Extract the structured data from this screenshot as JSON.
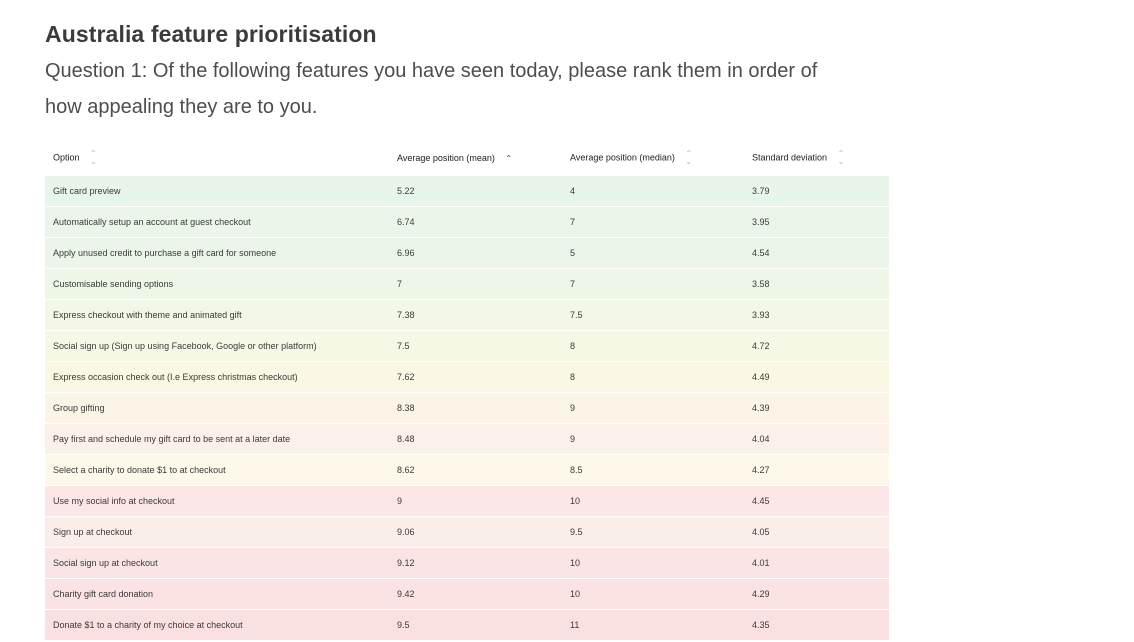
{
  "title": "Australia feature prioritisation",
  "question": "Question 1: Of the following features you have seen today, please rank them in order of how appealing they are to you.",
  "table": {
    "columns": [
      {
        "label": "Option",
        "sort_icon": "sort-both-icon",
        "active": false
      },
      {
        "label": "Average position (mean)",
        "sort_icon": "sort-up-icon",
        "active": true
      },
      {
        "label": "Average position (median)",
        "sort_icon": "sort-both-icon",
        "active": false
      },
      {
        "label": "Standard deviation",
        "sort_icon": "sort-both-icon",
        "active": false
      }
    ],
    "rows": [
      {
        "option": "Gift card preview",
        "mean": "5.22",
        "median": "4",
        "sd": "3.79",
        "color": "#e8f6ea"
      },
      {
        "option": "Automatically setup an account at guest checkout",
        "mean": "6.74",
        "median": "7",
        "sd": "3.95",
        "color": "#eaf6e9"
      },
      {
        "option": "Apply unused credit to purchase a gift card for someone",
        "mean": "6.96",
        "median": "5",
        "sd": "4.54",
        "color": "#ecf6e8"
      },
      {
        "option": "Customisable sending options",
        "mean": "7",
        "median": "7",
        "sd": "3.58",
        "color": "#edf6e7"
      },
      {
        "option": "Express checkout with theme and animated gift",
        "mean": "7.38",
        "median": "7.5",
        "sd": "3.93",
        "color": "#f2f7e7"
      },
      {
        "option": "Social sign up (Sign up using Facebook, Google or other platform)",
        "mean": "7.5",
        "median": "8",
        "sd": "4.72",
        "color": "#f6f8e6"
      },
      {
        "option": "Express occasion check out (I.e Express christmas checkout)",
        "mean": "7.62",
        "median": "8",
        "sd": "4.49",
        "color": "#faf7e4"
      },
      {
        "option": "Group gifting",
        "mean": "8.38",
        "median": "9",
        "sd": "4.39",
        "color": "#fcf4e6"
      },
      {
        "option": "Pay first and schedule my gift card to be sent at a later date",
        "mean": "8.48",
        "median": "9",
        "sd": "4.04",
        "color": "#fbf1e8"
      },
      {
        "option": "Select a charity to donate $1 to at checkout",
        "mean": "8.62",
        "median": "8.5",
        "sd": "4.27",
        "color": "#fdf8e9"
      },
      {
        "option": "Use my social info at checkout",
        "mean": "9",
        "median": "10",
        "sd": "4.45",
        "color": "#fbe7e7"
      },
      {
        "option": "Sign up at checkout",
        "mean": "9.06",
        "median": "9.5",
        "sd": "4.05",
        "color": "#f9efe8"
      },
      {
        "option": "Social sign up at checkout",
        "mean": "9.12",
        "median": "10",
        "sd": "4.01",
        "color": "#fae4e5"
      },
      {
        "option": "Charity gift card donation",
        "mean": "9.42",
        "median": "10",
        "sd": "4.29",
        "color": "#fbe2e3"
      },
      {
        "option": "Donate $1 to a charity of my choice at checkout",
        "mean": "9.5",
        "median": "11",
        "sd": "4.35",
        "color": "#fbe0e2"
      }
    ]
  }
}
